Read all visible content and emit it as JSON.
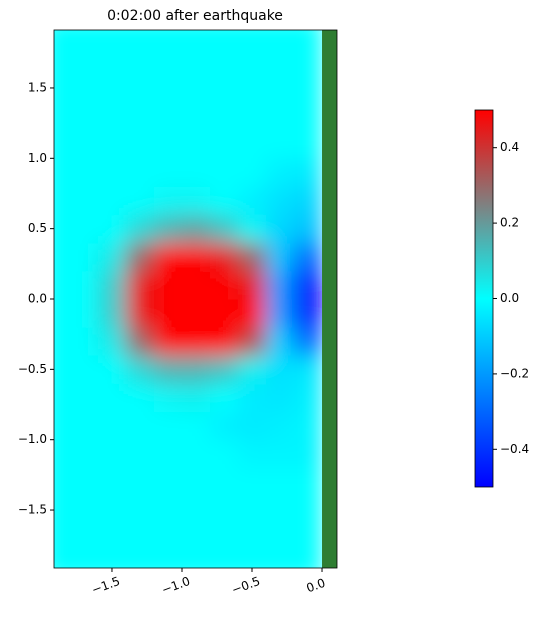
{
  "chart_data": {
    "type": "heatmap",
    "title": "0:02:00 after earthquake",
    "xlim": [
      -1.914,
      0.107
    ],
    "ylim": [
      -1.912,
      1.912
    ],
    "xticks": [
      {
        "value": -1.5,
        "label": "−1.5"
      },
      {
        "value": -1.0,
        "label": "−1.0"
      },
      {
        "value": -0.5,
        "label": "−0.5"
      },
      {
        "value": 0.0,
        "label": "0.0"
      }
    ],
    "yticks": [
      {
        "value": -1.5,
        "label": "−1.5"
      },
      {
        "value": -1.0,
        "label": "−1.0"
      },
      {
        "value": -0.5,
        "label": "−0.5"
      },
      {
        "value": 0.0,
        "label": "0.0"
      },
      {
        "value": 0.5,
        "label": "0.5"
      },
      {
        "value": 1.0,
        "label": "1.0"
      },
      {
        "value": 1.5,
        "label": "1.5"
      }
    ],
    "x_edges": [
      -2.0,
      -1.8,
      -1.6,
      -1.4,
      -1.2,
      -1.0,
      -0.8,
      -0.6,
      -0.4,
      -0.2,
      0.0
    ],
    "y_edges": [
      -2.0,
      -1.8,
      -1.6,
      -1.4,
      -1.2,
      -1.0,
      -0.8,
      -0.6,
      -0.4,
      -0.2,
      0.0,
      0.2,
      0.4,
      0.6,
      0.8,
      1.0,
      1.2,
      1.4,
      1.6,
      1.8,
      2.0
    ],
    "z": [
      [
        0,
        0,
        0,
        0,
        0,
        0,
        0,
        0,
        0,
        0
      ],
      [
        0,
        0,
        0,
        0,
        0,
        0,
        0,
        0,
        0,
        0
      ],
      [
        0,
        0,
        0,
        0,
        0,
        0,
        0,
        0,
        0,
        0
      ],
      [
        0,
        0,
        0,
        0,
        0,
        0,
        0,
        0,
        0,
        0
      ],
      [
        0,
        0,
        0,
        0,
        0,
        0,
        0,
        -0.02,
        -0.02,
        -0.02
      ],
      [
        0,
        0,
        0,
        0,
        0,
        0,
        -0.03,
        -0.04,
        -0.03,
        -0.02
      ],
      [
        0,
        0,
        0,
        0,
        0.02,
        0.03,
        0,
        -0.04,
        -0.05,
        -0.03
      ],
      [
        0,
        0,
        0,
        0.08,
        0.15,
        0.15,
        0.12,
        0.03,
        -0.06,
        -0.05
      ],
      [
        0,
        0,
        0.05,
        0.3,
        0.5,
        0.5,
        0.5,
        0.35,
        -0.1,
        -0.3
      ],
      [
        0,
        0,
        0.1,
        0.45,
        0.5,
        0.5,
        0.5,
        0.5,
        -0.2,
        -0.5
      ],
      [
        0,
        0,
        0.1,
        0.45,
        0.5,
        0.5,
        0.5,
        0.45,
        -0.2,
        -0.5
      ],
      [
        0,
        0,
        0.05,
        0.3,
        0.5,
        0.5,
        0.45,
        0.3,
        -0.12,
        -0.3
      ],
      [
        0,
        0,
        0,
        0.08,
        0.15,
        0.18,
        0.12,
        0.02,
        -0.08,
        -0.12
      ],
      [
        0,
        0,
        0,
        0,
        0.02,
        0.02,
        0,
        -0.03,
        -0.06,
        -0.08
      ],
      [
        0,
        0,
        0,
        0,
        0,
        0,
        0,
        0,
        -0.03,
        -0.04
      ],
      [
        0,
        0,
        0,
        0,
        0,
        0,
        0,
        0,
        0,
        0
      ],
      [
        0,
        0,
        0,
        0,
        0,
        0,
        0,
        0,
        0,
        0
      ],
      [
        0,
        0,
        0,
        0,
        0,
        0,
        0,
        0,
        0,
        0
      ],
      [
        0,
        0,
        0,
        0,
        0,
        0,
        0,
        0,
        0,
        0
      ],
      [
        0,
        0,
        0,
        0,
        0,
        0,
        0,
        0,
        0,
        0
      ]
    ],
    "land": {
      "color": "#2e7d32",
      "xlim": [
        0.0,
        0.107
      ]
    },
    "colormap": [
      {
        "value": -0.5,
        "color": "#0000ff"
      },
      {
        "value": -0.25,
        "color": "#0080ff"
      },
      {
        "value": 0.0,
        "color": "#00ffff"
      },
      {
        "value": 0.25,
        "color": "#808080"
      },
      {
        "value": 0.5,
        "color": "#ff0000"
      }
    ],
    "clim": [
      -0.5,
      0.5
    ],
    "cticks": [
      {
        "value": -0.4,
        "label": "−0.4"
      },
      {
        "value": -0.2,
        "label": "−0.2"
      },
      {
        "value": 0.0,
        "label": "0.0"
      },
      {
        "value": 0.2,
        "label": "0.2"
      },
      {
        "value": 0.4,
        "label": "0.4"
      }
    ]
  }
}
